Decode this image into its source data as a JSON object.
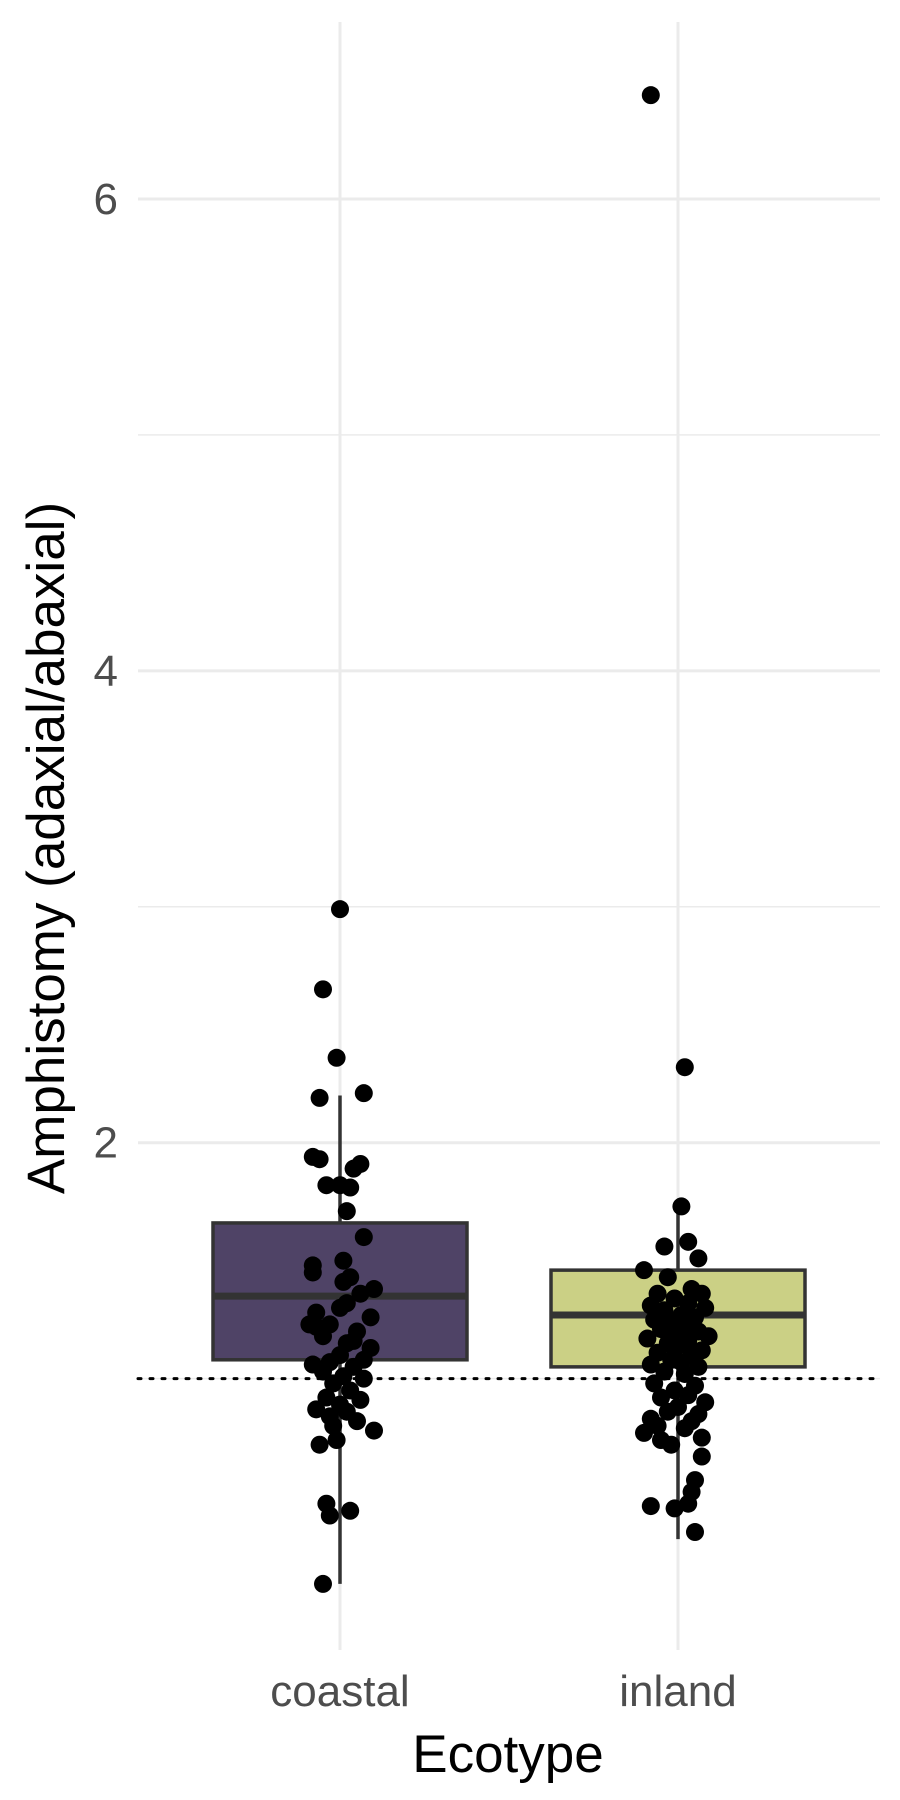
{
  "chart_data": {
    "type": "box",
    "xlabel": "Ecotype",
    "ylabel": "Amphistomy (adaxial/abaxial)",
    "categories": [
      "coastal",
      "inland"
    ],
    "y_ticks": [
      2,
      4,
      6
    ],
    "ylim": [
      -0.15,
      6.75
    ],
    "grid": true,
    "reference_line": {
      "y": 1.0,
      "style": "dotted"
    },
    "colors": {
      "coastal": "#4f4366",
      "inland": "#cbd085"
    },
    "boxes": [
      {
        "category": "coastal",
        "q1": 1.08,
        "median": 1.35,
        "q3": 1.66,
        "whisker_low": 0.13,
        "whisker_high": 2.2
      },
      {
        "category": "inland",
        "q1": 1.05,
        "median": 1.27,
        "q3": 1.46,
        "whisker_low": 0.32,
        "whisker_high": 1.73
      }
    ],
    "points": {
      "coastal": [
        {
          "x": 0.0,
          "y": 2.99
        },
        {
          "x": -0.05,
          "y": 2.65
        },
        {
          "x": -0.01,
          "y": 2.36
        },
        {
          "x": 0.07,
          "y": 2.21
        },
        {
          "x": -0.06,
          "y": 2.19
        },
        {
          "x": -0.08,
          "y": 1.94
        },
        {
          "x": -0.06,
          "y": 1.93
        },
        {
          "x": 0.06,
          "y": 1.91
        },
        {
          "x": 0.04,
          "y": 1.89
        },
        {
          "x": -0.04,
          "y": 1.82
        },
        {
          "x": 0.0,
          "y": 1.82
        },
        {
          "x": 0.03,
          "y": 1.81
        },
        {
          "x": 0.02,
          "y": 1.71
        },
        {
          "x": 0.07,
          "y": 1.6
        },
        {
          "x": 0.01,
          "y": 1.5
        },
        {
          "x": -0.08,
          "y": 1.48
        },
        {
          "x": -0.08,
          "y": 1.45
        },
        {
          "x": 0.03,
          "y": 1.43
        },
        {
          "x": 0.01,
          "y": 1.41
        },
        {
          "x": 0.1,
          "y": 1.38
        },
        {
          "x": 0.06,
          "y": 1.36
        },
        {
          "x": 0.02,
          "y": 1.32
        },
        {
          "x": 0.0,
          "y": 1.3
        },
        {
          "x": -0.07,
          "y": 1.28
        },
        {
          "x": 0.09,
          "y": 1.26
        },
        {
          "x": -0.09,
          "y": 1.23
        },
        {
          "x": -0.03,
          "y": 1.23
        },
        {
          "x": -0.07,
          "y": 1.22
        },
        {
          "x": 0.05,
          "y": 1.2
        },
        {
          "x": -0.05,
          "y": 1.18
        },
        {
          "x": 0.04,
          "y": 1.16
        },
        {
          "x": 0.02,
          "y": 1.15
        },
        {
          "x": 0.09,
          "y": 1.13
        },
        {
          "x": 0.0,
          "y": 1.1
        },
        {
          "x": 0.07,
          "y": 1.08
        },
        {
          "x": -0.03,
          "y": 1.07
        },
        {
          "x": -0.08,
          "y": 1.06
        },
        {
          "x": 0.04,
          "y": 1.05
        },
        {
          "x": -0.05,
          "y": 1.03
        },
        {
          "x": 0.01,
          "y": 1.01
        },
        {
          "x": 0.07,
          "y": 1.0
        },
        {
          "x": -0.02,
          "y": 0.98
        },
        {
          "x": 0.03,
          "y": 0.95
        },
        {
          "x": -0.04,
          "y": 0.92
        },
        {
          "x": 0.06,
          "y": 0.91
        },
        {
          "x": 0.0,
          "y": 0.89
        },
        {
          "x": -0.07,
          "y": 0.87
        },
        {
          "x": 0.02,
          "y": 0.86
        },
        {
          "x": -0.03,
          "y": 0.84
        },
        {
          "x": 0.05,
          "y": 0.82
        },
        {
          "x": -0.02,
          "y": 0.8
        },
        {
          "x": 0.1,
          "y": 0.78
        },
        {
          "x": -0.01,
          "y": 0.74
        },
        {
          "x": -0.06,
          "y": 0.72
        },
        {
          "x": -0.04,
          "y": 0.47
        },
        {
          "x": 0.03,
          "y": 0.44
        },
        {
          "x": -0.03,
          "y": 0.42
        },
        {
          "x": -0.05,
          "y": 0.13
        }
      ],
      "inland": [
        {
          "x": -0.08,
          "y": 6.44
        },
        {
          "x": 0.02,
          "y": 2.32
        },
        {
          "x": 0.01,
          "y": 1.73
        },
        {
          "x": 0.03,
          "y": 1.58
        },
        {
          "x": -0.04,
          "y": 1.56
        },
        {
          "x": 0.06,
          "y": 1.51
        },
        {
          "x": -0.1,
          "y": 1.46
        },
        {
          "x": -0.03,
          "y": 1.43
        },
        {
          "x": 0.04,
          "y": 1.38
        },
        {
          "x": -0.06,
          "y": 1.36
        },
        {
          "x": 0.07,
          "y": 1.36
        },
        {
          "x": -0.01,
          "y": 1.34
        },
        {
          "x": 0.03,
          "y": 1.32
        },
        {
          "x": -0.08,
          "y": 1.31
        },
        {
          "x": 0.08,
          "y": 1.3
        },
        {
          "x": -0.04,
          "y": 1.29
        },
        {
          "x": 0.01,
          "y": 1.27
        },
        {
          "x": 0.05,
          "y": 1.26
        },
        {
          "x": -0.07,
          "y": 1.25
        },
        {
          "x": -0.02,
          "y": 1.24
        },
        {
          "x": 0.02,
          "y": 1.22
        },
        {
          "x": -0.05,
          "y": 1.21
        },
        {
          "x": 0.06,
          "y": 1.2
        },
        {
          "x": -0.01,
          "y": 1.19
        },
        {
          "x": 0.09,
          "y": 1.18
        },
        {
          "x": -0.09,
          "y": 1.17
        },
        {
          "x": 0.03,
          "y": 1.16
        },
        {
          "x": -0.03,
          "y": 1.15
        },
        {
          "x": 0.0,
          "y": 1.14
        },
        {
          "x": 0.07,
          "y": 1.12
        },
        {
          "x": -0.06,
          "y": 1.11
        },
        {
          "x": 0.04,
          "y": 1.1
        },
        {
          "x": -0.02,
          "y": 1.08
        },
        {
          "x": 0.01,
          "y": 1.07
        },
        {
          "x": -0.08,
          "y": 1.06
        },
        {
          "x": 0.06,
          "y": 1.05
        },
        {
          "x": -0.04,
          "y": 1.03
        },
        {
          "x": 0.02,
          "y": 1.02
        },
        {
          "x": -0.07,
          "y": 0.98
        },
        {
          "x": 0.05,
          "y": 0.97
        },
        {
          "x": -0.01,
          "y": 0.95
        },
        {
          "x": 0.03,
          "y": 0.93
        },
        {
          "x": -0.05,
          "y": 0.92
        },
        {
          "x": 0.08,
          "y": 0.9
        },
        {
          "x": 0.0,
          "y": 0.88
        },
        {
          "x": -0.03,
          "y": 0.86
        },
        {
          "x": 0.06,
          "y": 0.85
        },
        {
          "x": -0.08,
          "y": 0.83
        },
        {
          "x": 0.04,
          "y": 0.82
        },
        {
          "x": -0.06,
          "y": 0.8
        },
        {
          "x": 0.02,
          "y": 0.79
        },
        {
          "x": -0.1,
          "y": 0.77
        },
        {
          "x": 0.07,
          "y": 0.75
        },
        {
          "x": -0.05,
          "y": 0.74
        },
        {
          "x": 0.07,
          "y": 0.67
        },
        {
          "x": -0.02,
          "y": 0.72
        },
        {
          "x": 0.05,
          "y": 0.57
        },
        {
          "x": 0.04,
          "y": 0.52
        },
        {
          "x": 0.03,
          "y": 0.47
        },
        {
          "x": -0.08,
          "y": 0.46
        },
        {
          "x": 0.05,
          "y": 0.35
        },
        {
          "x": -0.01,
          "y": 0.45
        }
      ]
    }
  }
}
